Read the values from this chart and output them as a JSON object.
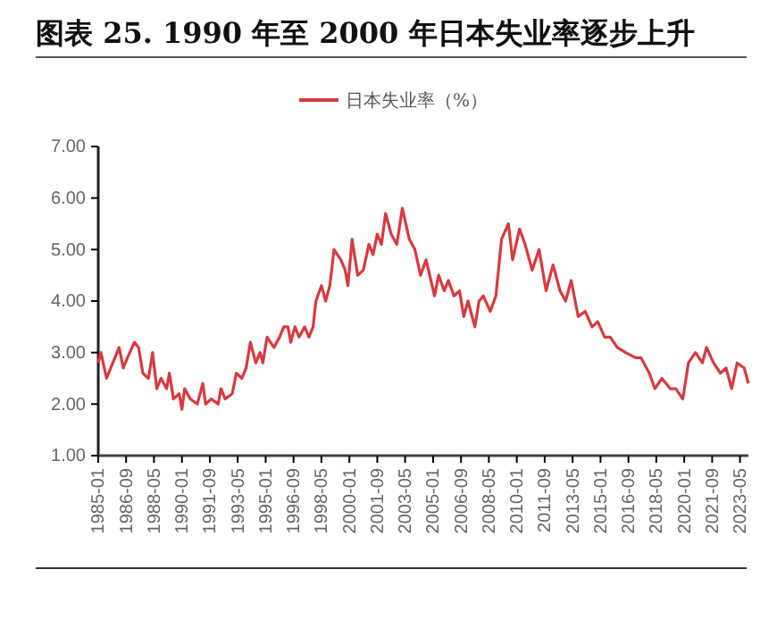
{
  "chart_data": {
    "type": "line",
    "title": "图表 25. 1990 年至 2000 年日本失业率逐步上升",
    "legend": "top",
    "grid": false,
    "marker": "none",
    "line_style": "solid",
    "xlim": [
      "1985-01",
      "2023-11"
    ],
    "xticks": [
      "1985-01",
      "1986-09",
      "1988-05",
      "1990-01",
      "1991-09",
      "1993-05",
      "1995-01",
      "1996-09",
      "1998-05",
      "2000-01",
      "2001-09",
      "2003-05",
      "2005-01",
      "2006-09",
      "2008-05",
      "2010-01",
      "2011-09",
      "2013-05",
      "2015-01",
      "2016-09",
      "2018-05",
      "2020-01",
      "2021-09",
      "2023-05"
    ],
    "ylim": [
      1,
      7
    ],
    "yticks": [
      {
        "value": 1,
        "label": "1.00"
      },
      {
        "value": 2,
        "label": "2.00"
      },
      {
        "value": 3,
        "label": "3.00"
      },
      {
        "value": 4,
        "label": "4.00"
      },
      {
        "value": 5,
        "label": "5.00"
      },
      {
        "value": 6,
        "label": "6.00"
      },
      {
        "value": 7,
        "label": "7.00"
      }
    ],
    "x": [
      "1985-01",
      "1985-03",
      "1985-07",
      "1985-10",
      "1986-04",
      "1986-07",
      "1986-10",
      "1987-03",
      "1987-06",
      "1987-09",
      "1988-01",
      "1988-04",
      "1988-07",
      "1988-10",
      "1989-02",
      "1989-04",
      "1989-07",
      "1989-11",
      "1990-01",
      "1990-03",
      "1990-07",
      "1990-12",
      "1991-04",
      "1991-06",
      "1991-10",
      "1992-03",
      "1992-05",
      "1992-08",
      "1993-01",
      "1993-04",
      "1993-08",
      "1993-11",
      "1994-02",
      "1994-06",
      "1994-09",
      "1994-11",
      "1995-02",
      "1995-07",
      "1995-11",
      "1996-02",
      "1996-05",
      "1996-07",
      "1996-10",
      "1997-01",
      "1997-05",
      "1997-08",
      "1997-11",
      "1998-01",
      "1998-05",
      "1998-08",
      "1998-11",
      "1999-02",
      "1999-07",
      "1999-10",
      "1999-12",
      "2000-03",
      "2000-07",
      "2000-11",
      "2001-03",
      "2001-06",
      "2001-09",
      "2001-12",
      "2002-03",
      "2002-07",
      "2002-11",
      "2003-03",
      "2003-08",
      "2003-12",
      "2004-04",
      "2004-08",
      "2005-02",
      "2005-05",
      "2005-09",
      "2005-12",
      "2006-04",
      "2006-08",
      "2006-11",
      "2007-02",
      "2007-07",
      "2007-10",
      "2008-01",
      "2008-06",
      "2008-10",
      "2009-02",
      "2009-07",
      "2009-10",
      "2010-03",
      "2010-07",
      "2010-12",
      "2011-05",
      "2011-10",
      "2012-03",
      "2012-08",
      "2012-12",
      "2013-04",
      "2013-09",
      "2014-02",
      "2014-07",
      "2014-11",
      "2015-04",
      "2015-08",
      "2016-01",
      "2016-07",
      "2017-02",
      "2017-06",
      "2017-12",
      "2018-04",
      "2018-09",
      "2019-03",
      "2019-07",
      "2019-12",
      "2020-04",
      "2020-09",
      "2021-02",
      "2021-05",
      "2021-10",
      "2022-03",
      "2022-07",
      "2022-11",
      "2023-03",
      "2023-08",
      "2023-11"
    ],
    "series": [
      {
        "name": "日本失业率（%）",
        "color": "#d9393e",
        "values": [
          2.8,
          3.0,
          2.5,
          2.7,
          3.1,
          2.7,
          2.9,
          3.2,
          3.1,
          2.6,
          2.5,
          3.0,
          2.3,
          2.5,
          2.3,
          2.6,
          2.1,
          2.2,
          1.9,
          2.3,
          2.1,
          2.0,
          2.4,
          2.0,
          2.1,
          2.0,
          2.3,
          2.1,
          2.2,
          2.6,
          2.5,
          2.7,
          3.2,
          2.8,
          3.0,
          2.8,
          3.3,
          3.1,
          3.3,
          3.5,
          3.5,
          3.2,
          3.5,
          3.3,
          3.5,
          3.3,
          3.5,
          4.0,
          4.3,
          4.0,
          4.3,
          5.0,
          4.8,
          4.6,
          4.3,
          5.2,
          4.5,
          4.6,
          5.1,
          4.9,
          5.3,
          5.1,
          5.7,
          5.3,
          5.1,
          5.8,
          5.2,
          5.0,
          4.5,
          4.8,
          4.1,
          4.5,
          4.2,
          4.4,
          4.1,
          4.2,
          3.7,
          4.0,
          3.5,
          4.0,
          4.1,
          3.8,
          4.1,
          5.2,
          5.5,
          4.8,
          5.4,
          5.1,
          4.6,
          5.0,
          4.2,
          4.7,
          4.2,
          4.0,
          4.4,
          3.7,
          3.8,
          3.5,
          3.6,
          3.3,
          3.3,
          3.1,
          3.0,
          2.9,
          2.9,
          2.6,
          2.3,
          2.5,
          2.3,
          2.3,
          2.1,
          2.8,
          3.0,
          2.8,
          3.1,
          2.8,
          2.6,
          2.7,
          2.3,
          2.8,
          2.7,
          2.4
        ]
      }
    ]
  }
}
